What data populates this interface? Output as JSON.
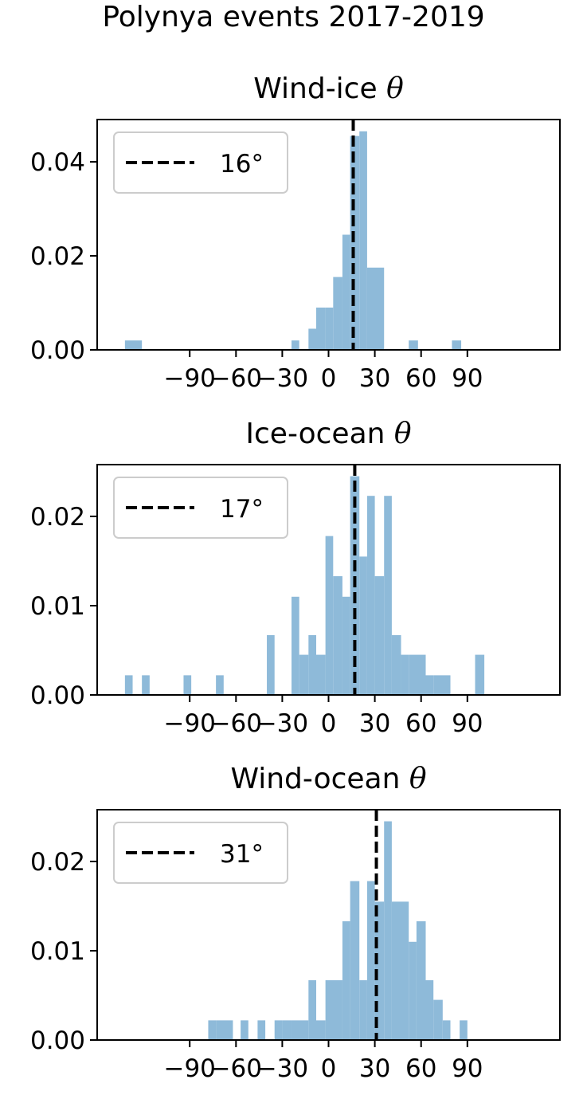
{
  "title": "Polynya events 2017-2019",
  "colors": {
    "bar": "#8ebad9",
    "median_line": "#000000",
    "frame": "#000000"
  },
  "chart_data": [
    {
      "type": "bar",
      "title": "Wind-ice θ",
      "title_text": "Wind-ice ",
      "title_symbol": "θ",
      "median_label": "16°",
      "median": 16,
      "xlim": [
        -150,
        150
      ],
      "ylim": [
        0,
        0.049
      ],
      "xticks": [
        -90,
        -60,
        -30,
        0,
        30,
        60,
        90
      ],
      "xtick_labels": [
        "−90",
        "−60",
        "−30",
        "0",
        "30",
        "60",
        "90"
      ],
      "yticks": [
        0.0,
        0.02,
        0.04
      ],
      "ytick_labels": [
        "0.00",
        "0.02",
        "0.04"
      ],
      "legend_loc": "upper left",
      "bins": [
        {
          "x0": -132,
          "x1": -121,
          "y": 0.002
        },
        {
          "x0": -24,
          "x1": -19,
          "y": 0.002
        },
        {
          "x0": -13,
          "x1": -8,
          "y": 0.0045
        },
        {
          "x0": -8,
          "x1": -2,
          "y": 0.009
        },
        {
          "x0": -2,
          "x1": 3,
          "y": 0.009
        },
        {
          "x0": 3,
          "x1": 9,
          "y": 0.0155
        },
        {
          "x0": 9,
          "x1": 14,
          "y": 0.0245
        },
        {
          "x0": 14,
          "x1": 20,
          "y": 0.0455
        },
        {
          "x0": 20,
          "x1": 25,
          "y": 0.0465
        },
        {
          "x0": 25,
          "x1": 36,
          "y": 0.0175
        },
        {
          "x0": 52,
          "x1": 58,
          "y": 0.002
        },
        {
          "x0": 80,
          "x1": 86,
          "y": 0.002
        }
      ]
    },
    {
      "type": "bar",
      "title": "Ice-ocean θ",
      "title_text": "Ice-ocean ",
      "title_symbol": "θ",
      "median_label": "17°",
      "median": 17,
      "xlim": [
        -150,
        150
      ],
      "ylim": [
        0,
        0.0258
      ],
      "xticks": [
        -90,
        -60,
        -30,
        0,
        30,
        60,
        90
      ],
      "xtick_labels": [
        "−90",
        "−60",
        "−30",
        "0",
        "30",
        "60",
        "90"
      ],
      "yticks": [
        0.0,
        0.01,
        0.02
      ],
      "ytick_labels": [
        "0.00",
        "0.01",
        "0.02"
      ],
      "legend_loc": "upper left",
      "bins": [
        {
          "x0": -132,
          "x1": -127,
          "y": 0.0022
        },
        {
          "x0": -121,
          "x1": -116,
          "y": 0.0022
        },
        {
          "x0": -94,
          "x1": -89,
          "y": 0.0022
        },
        {
          "x0": -73,
          "x1": -68,
          "y": 0.0022
        },
        {
          "x0": -40,
          "x1": -35,
          "y": 0.0067
        },
        {
          "x0": -24,
          "x1": -19,
          "y": 0.011
        },
        {
          "x0": -19,
          "x1": -13,
          "y": 0.0045
        },
        {
          "x0": -13,
          "x1": -8,
          "y": 0.0067
        },
        {
          "x0": -8,
          "x1": -2,
          "y": 0.0045
        },
        {
          "x0": -2,
          "x1": 3,
          "y": 0.0178
        },
        {
          "x0": 3,
          "x1": 9,
          "y": 0.0133
        },
        {
          "x0": 9,
          "x1": 14,
          "y": 0.011
        },
        {
          "x0": 14,
          "x1": 20,
          "y": 0.0245
        },
        {
          "x0": 20,
          "x1": 25,
          "y": 0.0155
        },
        {
          "x0": 25,
          "x1": 30,
          "y": 0.0223
        },
        {
          "x0": 30,
          "x1": 36,
          "y": 0.0133
        },
        {
          "x0": 36,
          "x1": 41,
          "y": 0.0223
        },
        {
          "x0": 41,
          "x1": 47,
          "y": 0.0067
        },
        {
          "x0": 47,
          "x1": 52,
          "y": 0.0045
        },
        {
          "x0": 52,
          "x1": 63,
          "y": 0.0045
        },
        {
          "x0": 63,
          "x1": 68,
          "y": 0.0022
        },
        {
          "x0": 68,
          "x1": 79,
          "y": 0.0022
        },
        {
          "x0": 95,
          "x1": 101,
          "y": 0.0045
        }
      ]
    },
    {
      "type": "bar",
      "title": "Wind-ocean θ",
      "title_text": "Wind-ocean ",
      "title_symbol": "θ",
      "median_label": "31°",
      "median": 31,
      "xlim": [
        -150,
        150
      ],
      "ylim": [
        0,
        0.0258
      ],
      "xticks": [
        -90,
        -60,
        -30,
        0,
        30,
        60,
        90
      ],
      "xtick_labels": [
        "−90",
        "−60",
        "−30",
        "0",
        "30",
        "60",
        "90"
      ],
      "yticks": [
        0.0,
        0.01,
        0.02
      ],
      "ytick_labels": [
        "0.00",
        "0.01",
        "0.02"
      ],
      "legend_loc": "upper left",
      "bins": [
        {
          "x0": -78,
          "x1": -73,
          "y": 0.0022
        },
        {
          "x0": -73,
          "x1": -62,
          "y": 0.0022
        },
        {
          "x0": -57,
          "x1": -52,
          "y": 0.0022
        },
        {
          "x0": -46,
          "x1": -41,
          "y": 0.0022
        },
        {
          "x0": -35,
          "x1": -30,
          "y": 0.0022
        },
        {
          "x0": -30,
          "x1": -24,
          "y": 0.0022
        },
        {
          "x0": -24,
          "x1": -13,
          "y": 0.0022
        },
        {
          "x0": -13,
          "x1": -8,
          "y": 0.0067
        },
        {
          "x0": -8,
          "x1": -2,
          "y": 0.0022
        },
        {
          "x0": -2,
          "x1": 9,
          "y": 0.0067
        },
        {
          "x0": 9,
          "x1": 14,
          "y": 0.0133
        },
        {
          "x0": 14,
          "x1": 20,
          "y": 0.0178
        },
        {
          "x0": 20,
          "x1": 25,
          "y": 0.0067
        },
        {
          "x0": 25,
          "x1": 30,
          "y": 0.0178
        },
        {
          "x0": 30,
          "x1": 36,
          "y": 0.0155
        },
        {
          "x0": 36,
          "x1": 41,
          "y": 0.0245
        },
        {
          "x0": 41,
          "x1": 52,
          "y": 0.0155
        },
        {
          "x0": 52,
          "x1": 57,
          "y": 0.011
        },
        {
          "x0": 57,
          "x1": 63,
          "y": 0.0133
        },
        {
          "x0": 63,
          "x1": 68,
          "y": 0.0067
        },
        {
          "x0": 68,
          "x1": 74,
          "y": 0.0045
        },
        {
          "x0": 74,
          "x1": 79,
          "y": 0.0022
        },
        {
          "x0": 85,
          "x1": 90,
          "y": 0.0022
        }
      ]
    }
  ]
}
